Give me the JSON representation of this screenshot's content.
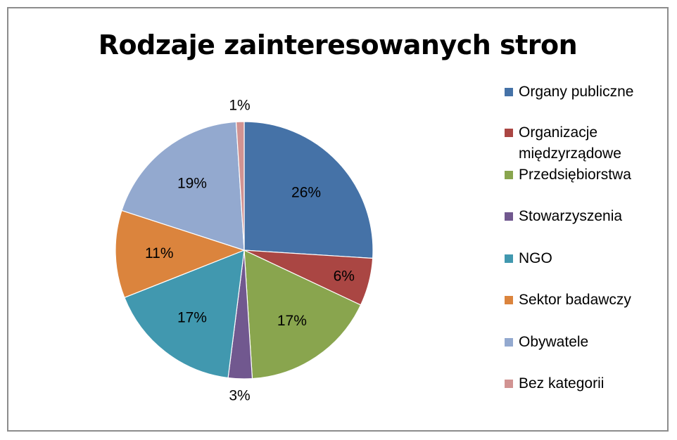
{
  "chart_data": {
    "type": "pie",
    "title": "Rodzaje zainteresowanych stron",
    "categories": [
      "Organy publiczne",
      "Organizacje międzyrządowe",
      "Przedsiębiorstwa",
      "Stowarzyszenia",
      "NGO",
      "Sektor badawczy",
      "Obywatele",
      "Bez kategorii"
    ],
    "values": [
      26,
      6,
      17,
      3,
      17,
      11,
      19,
      1
    ],
    "labels": [
      "26%",
      "6%",
      "17%",
      "3%",
      "17%",
      "11%",
      "19%",
      "1%"
    ],
    "colors": [
      "#4572a7",
      "#aa4643",
      "#89a54e",
      "#71588f",
      "#4198af",
      "#db843d",
      "#93a9cf",
      "#d19392"
    ],
    "legend_position": "right"
  }
}
